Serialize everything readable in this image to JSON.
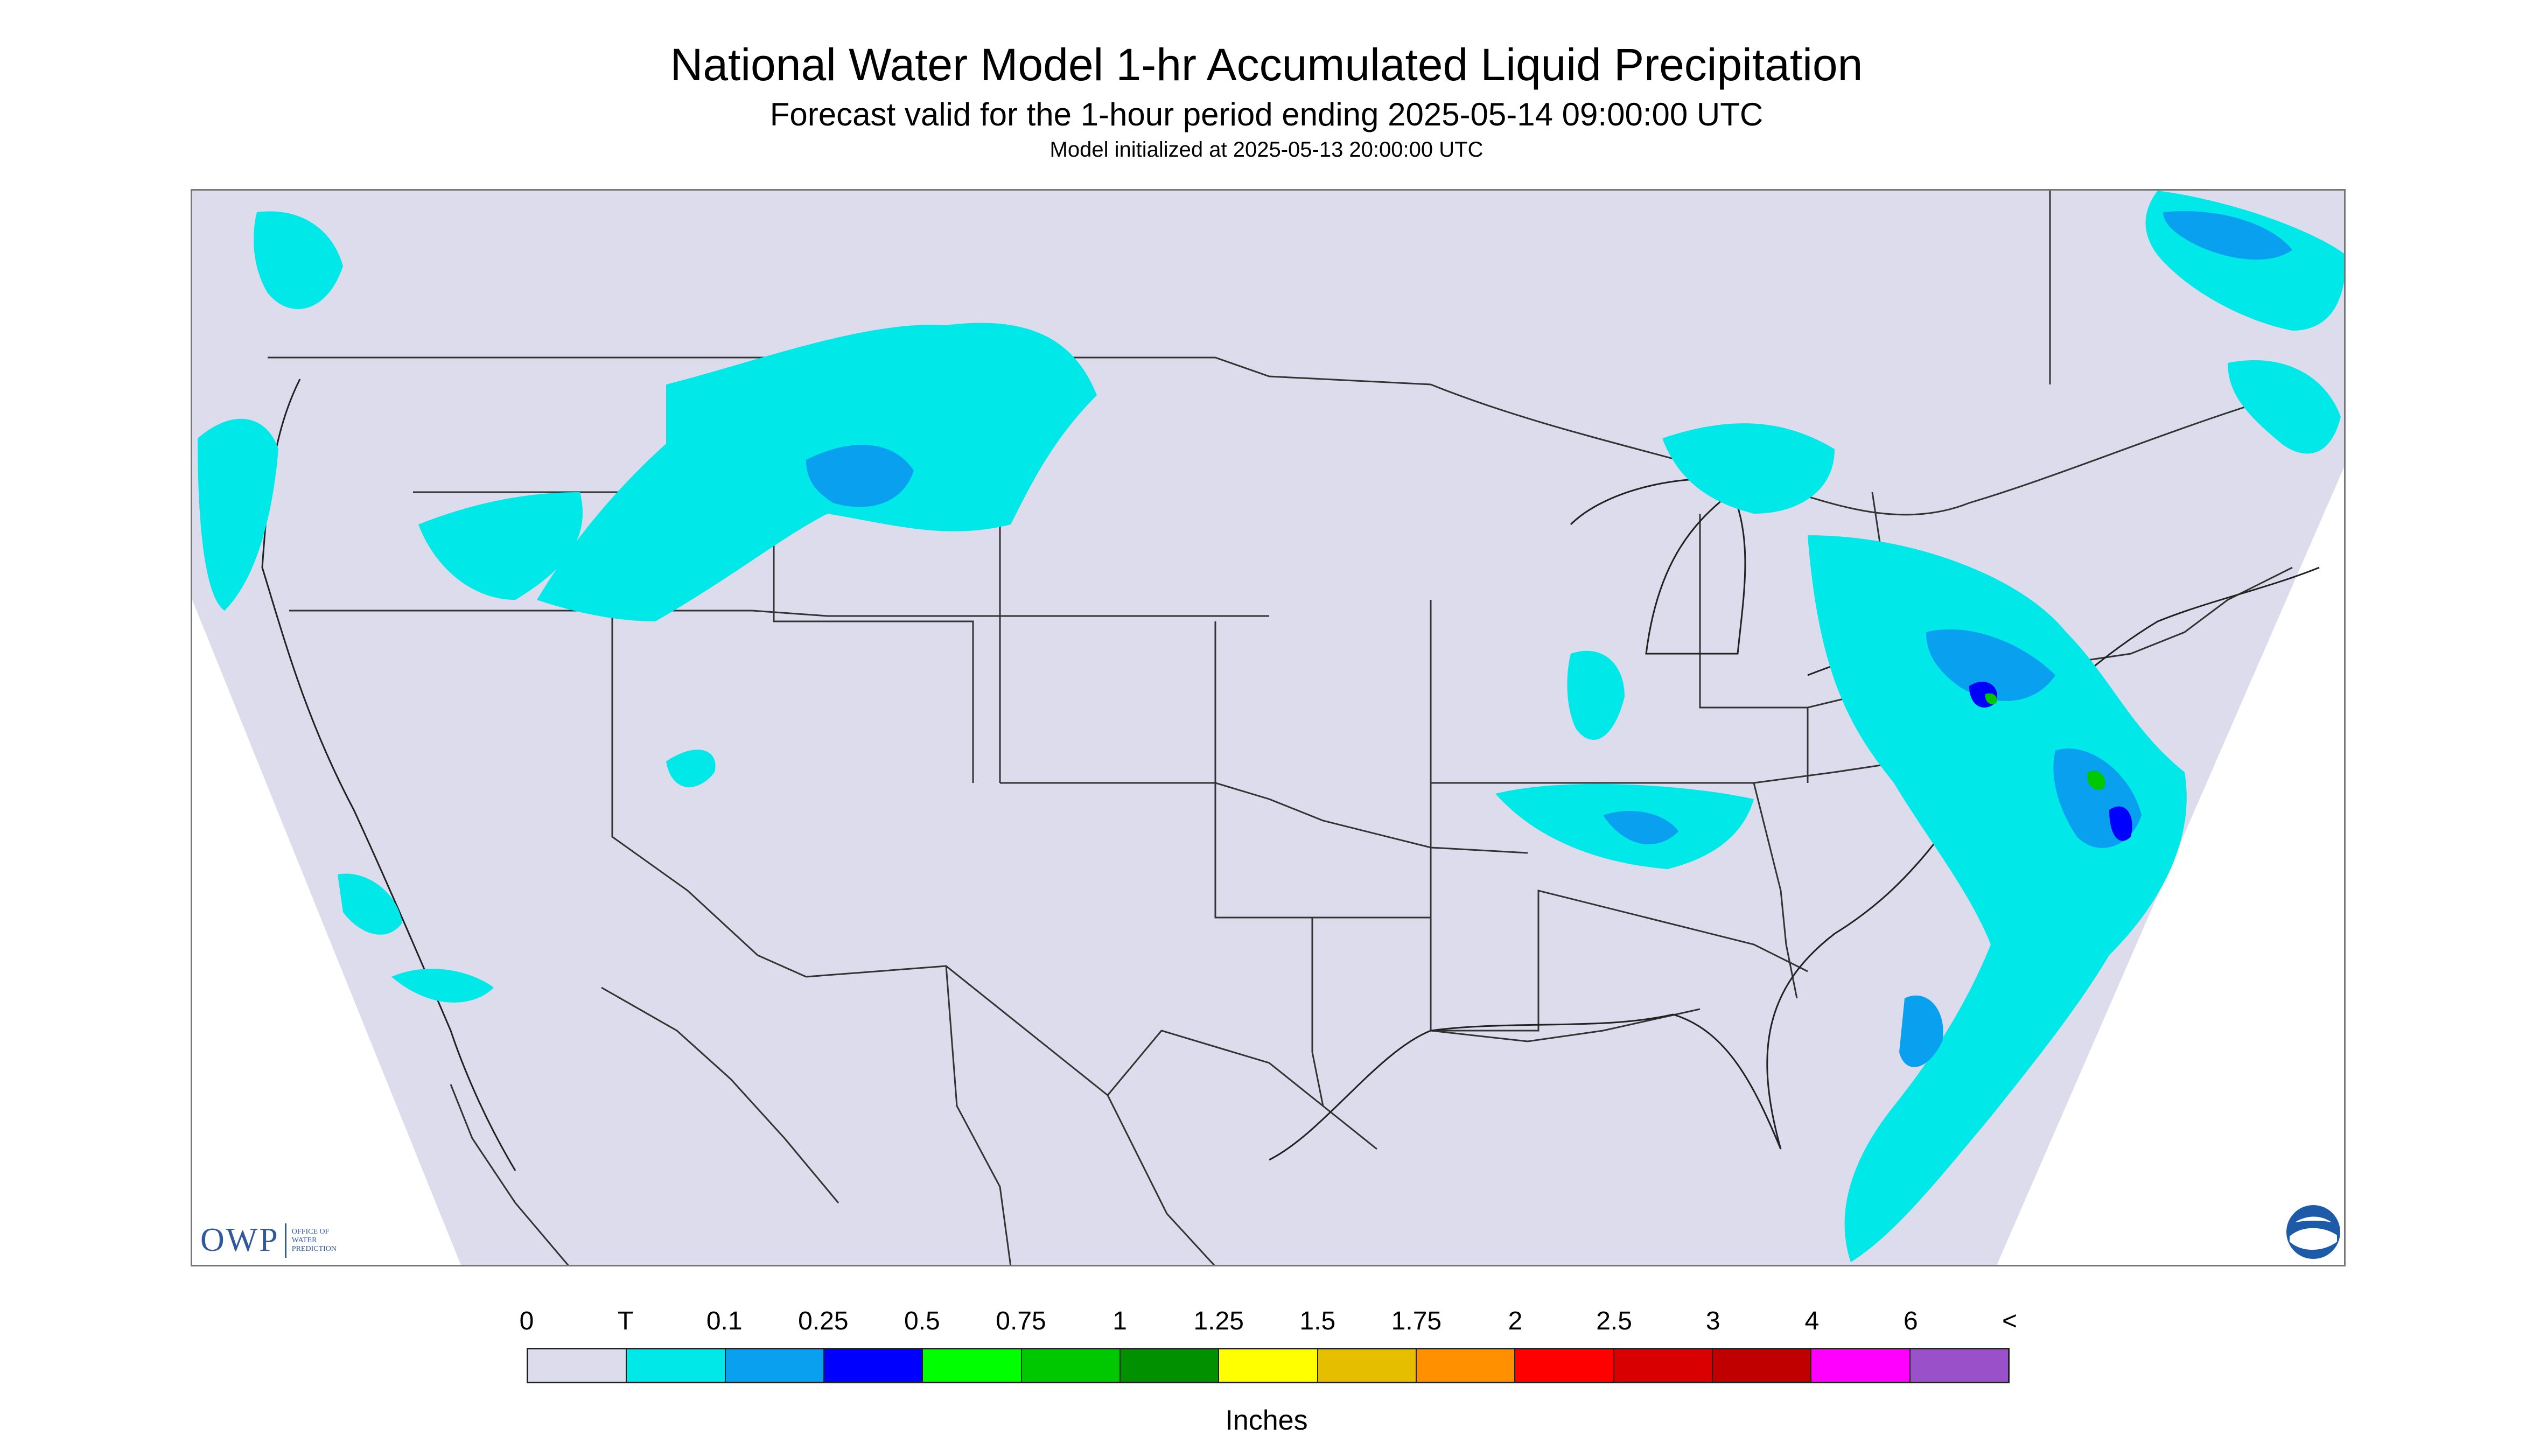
{
  "title": "National Water Model 1-hr Accumulated Liquid Precipitation",
  "subtitle": "Forecast valid for the 1-hour period ending 2025-05-14 09:00:00 UTC",
  "init_text": "Model initialized at 2025-05-13 20:00:00 UTC",
  "legend": {
    "labels": [
      "0",
      "T",
      "0.1",
      "0.25",
      "0.5",
      "0.75",
      "1",
      "1.25",
      "1.5",
      "1.75",
      "2",
      "2.5",
      "3",
      "4",
      "6",
      "<"
    ],
    "colors": [
      "#dcdcec",
      "#00e8e8",
      "#0aa0f0",
      "#0000ff",
      "#00ff00",
      "#00c800",
      "#009000",
      "#ffff00",
      "#e6be00",
      "#ff9000",
      "#ff0000",
      "#d80000",
      "#c00000",
      "#ff00ff",
      "#9a50c8"
    ],
    "units": "Inches"
  },
  "logos": {
    "owp_abbrev": "OWP",
    "owp_text": "OFFICE OF WATER PREDICTION",
    "noaa_text": "NOAA"
  },
  "map": {
    "no_data_color": "#ffffff",
    "land_color": "#dcdcec",
    "precip_colors": {
      "trace": "#00e8e8",
      "light": "#0aa0f0",
      "moderate": "#0000ff",
      "heavy": "#00c800"
    }
  }
}
